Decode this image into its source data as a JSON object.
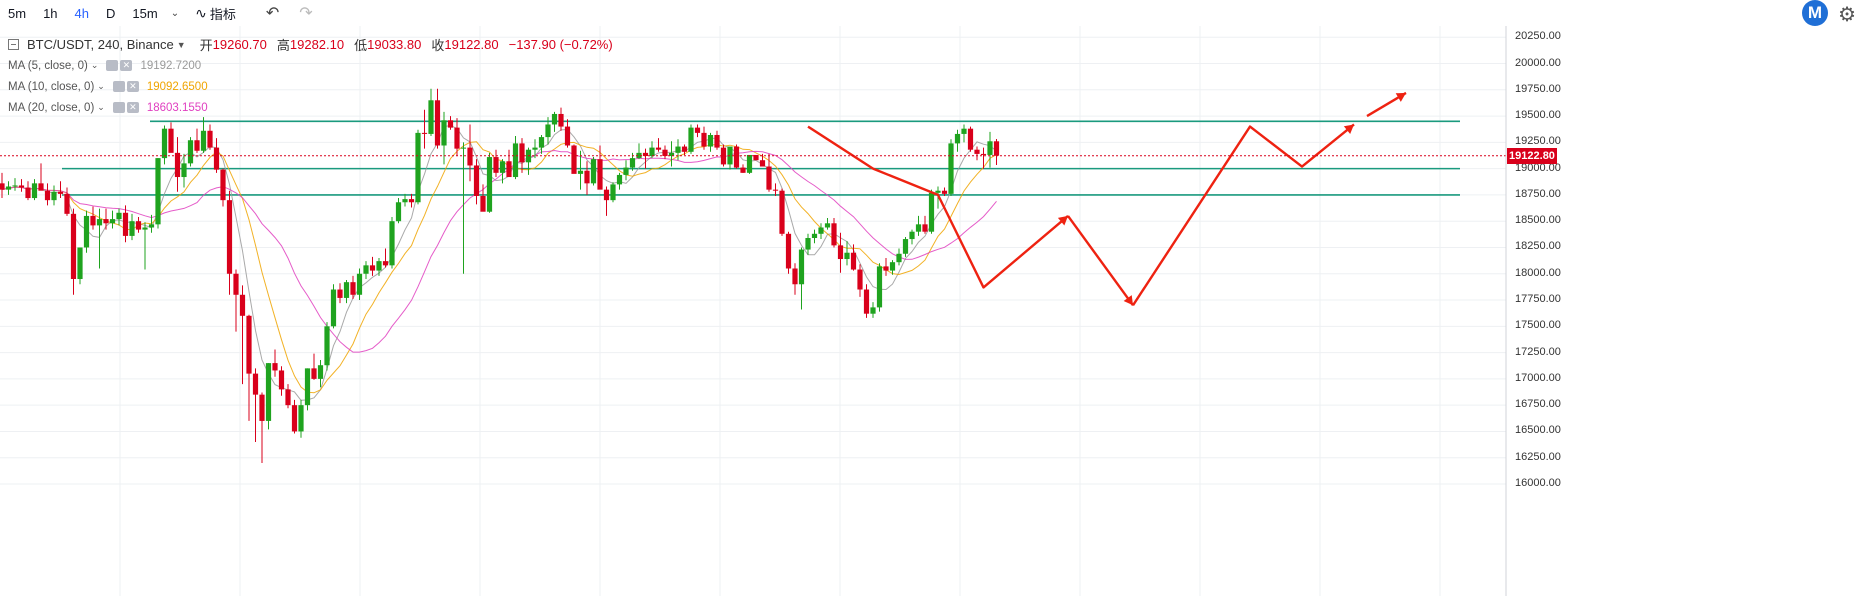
{
  "toolbar": {
    "timeframes": [
      "5m",
      "1h",
      "4h",
      "D",
      "15m"
    ],
    "active_timeframe": "4h",
    "indicators_label": "指标"
  },
  "legend": {
    "symbol": "BTC/USDT, 240, Binance",
    "open_label": "开",
    "open_value": "19260.70",
    "high_label": "高",
    "high_value": "19282.10",
    "low_label": "低",
    "low_value": "19033.80",
    "close_label": "收",
    "close_value": "19122.80",
    "change": "−137.90 (−0.72%)",
    "ma": [
      {
        "label": "MA (5, close, 0)",
        "value": "19192.7200",
        "color": "#9a9a9a"
      },
      {
        "label": "MA (10, close, 0)",
        "value": "19092.6500",
        "color": "#f0a500"
      },
      {
        "label": "MA (20, close, 0)",
        "value": "18603.1550",
        "color": "#e040c0"
      }
    ]
  },
  "current_price_label": "19122.80",
  "colors": {
    "up": "#1fa31f",
    "down": "#d9001b",
    "hline": "#1a9a7e",
    "arrow": "#ee2211"
  },
  "chart_data": {
    "type": "candlestick",
    "title": "",
    "symbol": "BTC/USDT",
    "interval": "240",
    "ylim": [
      15900,
      20400
    ],
    "y_ticks": [
      "20250.00",
      "20000.00",
      "19750.00",
      "19500.00",
      "19250.00",
      "19000.00",
      "18750.00",
      "18500.00",
      "18250.00",
      "18000.00",
      "17750.00",
      "17500.00",
      "17250.00",
      "17000.00",
      "16750.00",
      "16500.00",
      "16250.00",
      "16000.00"
    ],
    "grid": true,
    "last_price": 19122.8,
    "horizontal_levels": [
      19450,
      19000,
      18750
    ],
    "candles_ohlc": [
      [
        18860,
        18960,
        18720,
        18800
      ],
      [
        18800,
        18880,
        18750,
        18830
      ],
      [
        18830,
        18910,
        18790,
        18840
      ],
      [
        18840,
        18900,
        18780,
        18820
      ],
      [
        18820,
        18880,
        18700,
        18720
      ],
      [
        18720,
        18900,
        18700,
        18860
      ],
      [
        18860,
        19050,
        18830,
        18790
      ],
      [
        18790,
        18860,
        18650,
        18700
      ],
      [
        18700,
        18840,
        18650,
        18780
      ],
      [
        18780,
        18880,
        18720,
        18760
      ],
      [
        18760,
        18820,
        18550,
        18570
      ],
      [
        18570,
        18620,
        17800,
        17950
      ],
      [
        17950,
        18250,
        17900,
        18250
      ],
      [
        18250,
        18600,
        18200,
        18550
      ],
      [
        18550,
        18640,
        18420,
        18460
      ],
      [
        18460,
        18620,
        18050,
        18520
      ],
      [
        18520,
        18620,
        18420,
        18480
      ],
      [
        18480,
        18600,
        18430,
        18520
      ],
      [
        18520,
        18620,
        18460,
        18580
      ],
      [
        18580,
        18650,
        18300,
        18360
      ],
      [
        18360,
        18570,
        18320,
        18500
      ],
      [
        18500,
        18540,
        18390,
        18420
      ],
      [
        18420,
        18490,
        18040,
        18440
      ],
      [
        18440,
        18560,
        18390,
        18470
      ],
      [
        18470,
        19100,
        18430,
        19100
      ],
      [
        19100,
        19410,
        19040,
        19380
      ],
      [
        19380,
        19440,
        19160,
        19150
      ],
      [
        19150,
        19300,
        18780,
        18920
      ],
      [
        18920,
        19140,
        18820,
        19050
      ],
      [
        19050,
        19300,
        19020,
        19270
      ],
      [
        19270,
        19380,
        19150,
        19170
      ],
      [
        19170,
        19490,
        19150,
        19360
      ],
      [
        19360,
        19420,
        19180,
        19200
      ],
      [
        19200,
        19290,
        18960,
        18990
      ],
      [
        18990,
        19000,
        18640,
        18700
      ],
      [
        18700,
        18790,
        17800,
        18000
      ],
      [
        18000,
        18040,
        17450,
        17800
      ],
      [
        17800,
        17890,
        16950,
        17600
      ],
      [
        17600,
        17610,
        16600,
        17050
      ],
      [
        17050,
        17100,
        16400,
        16850
      ],
      [
        16850,
        16870,
        16200,
        16600
      ],
      [
        16600,
        17150,
        16520,
        17150
      ],
      [
        17150,
        17280,
        17020,
        17080
      ],
      [
        17080,
        17120,
        16840,
        16900
      ],
      [
        16900,
        16950,
        16720,
        16750
      ],
      [
        16750,
        16800,
        16480,
        16500
      ],
      [
        16500,
        16800,
        16440,
        16750
      ],
      [
        16750,
        17100,
        16700,
        17100
      ],
      [
        17100,
        17240,
        16990,
        17000
      ],
      [
        17000,
        17180,
        16920,
        17130
      ],
      [
        17130,
        17540,
        17080,
        17500
      ],
      [
        17500,
        17900,
        17480,
        17850
      ],
      [
        17850,
        17910,
        17720,
        17770
      ],
      [
        17770,
        17940,
        17720,
        17920
      ],
      [
        17920,
        17980,
        17760,
        17800
      ],
      [
        17800,
        18050,
        17750,
        18000
      ],
      [
        18000,
        18120,
        17950,
        18080
      ],
      [
        18080,
        18160,
        17980,
        18030
      ],
      [
        18030,
        18150,
        17980,
        18120
      ],
      [
        18120,
        18240,
        18060,
        18080
      ],
      [
        18080,
        18540,
        18050,
        18500
      ],
      [
        18500,
        18720,
        18480,
        18680
      ],
      [
        18680,
        18760,
        18640,
        18710
      ],
      [
        18710,
        18760,
        18630,
        18680
      ],
      [
        18680,
        19370,
        18660,
        19340
      ],
      [
        19340,
        19560,
        19190,
        19330
      ],
      [
        19330,
        19760,
        19310,
        19650
      ],
      [
        19650,
        19760,
        19190,
        19220
      ],
      [
        19220,
        19540,
        19040,
        19460
      ],
      [
        19460,
        19500,
        19370,
        19390
      ],
      [
        19390,
        19480,
        19120,
        19190
      ],
      [
        19190,
        19250,
        18000,
        19200
      ],
      [
        19200,
        19420,
        18880,
        19030
      ],
      [
        19030,
        19090,
        18660,
        18740
      ],
      [
        18740,
        18850,
        18600,
        18590
      ],
      [
        18590,
        19150,
        18580,
        19110
      ],
      [
        19110,
        19180,
        18920,
        18960
      ],
      [
        18960,
        19090,
        18860,
        19070
      ],
      [
        19070,
        19180,
        18920,
        18920
      ],
      [
        18920,
        19310,
        18900,
        19240
      ],
      [
        19240,
        19290,
        18960,
        19060
      ],
      [
        19060,
        19200,
        18940,
        19180
      ],
      [
        19180,
        19280,
        19100,
        19200
      ],
      [
        19200,
        19320,
        19140,
        19300
      ],
      [
        19300,
        19490,
        19230,
        19420
      ],
      [
        19420,
        19540,
        19350,
        19520
      ],
      [
        19520,
        19580,
        19360,
        19400
      ],
      [
        19400,
        19470,
        19200,
        19220
      ],
      [
        19220,
        19230,
        19020,
        18950
      ],
      [
        18950,
        19170,
        18800,
        18980
      ],
      [
        18980,
        19070,
        18750,
        18860
      ],
      [
        18860,
        19110,
        18840,
        19090
      ],
      [
        19090,
        19220,
        18890,
        18800
      ],
      [
        18800,
        18830,
        18550,
        18700
      ],
      [
        18700,
        18870,
        18680,
        18850
      ],
      [
        18850,
        18960,
        18800,
        18940
      ],
      [
        18940,
        19080,
        18890,
        19010
      ],
      [
        19010,
        19150,
        18980,
        19100
      ],
      [
        19100,
        19240,
        19090,
        19150
      ],
      [
        19150,
        19190,
        19000,
        19120
      ],
      [
        19120,
        19260,
        19100,
        19200
      ],
      [
        19200,
        19290,
        19160,
        19180
      ],
      [
        19180,
        19220,
        19090,
        19120
      ],
      [
        19120,
        19260,
        19020,
        19150
      ],
      [
        19150,
        19280,
        19080,
        19210
      ],
      [
        19210,
        19230,
        19130,
        19160
      ],
      [
        19160,
        19420,
        19140,
        19390
      ],
      [
        19390,
        19420,
        19300,
        19340
      ],
      [
        19340,
        19400,
        19180,
        19210
      ],
      [
        19210,
        19340,
        19160,
        19320
      ],
      [
        19320,
        19360,
        19180,
        19200
      ],
      [
        19200,
        19230,
        19020,
        19040
      ],
      [
        19040,
        19080,
        18990,
        19210
      ],
      [
        19210,
        19230,
        19000,
        19010
      ],
      [
        19010,
        19040,
        18960,
        18960
      ],
      [
        18960,
        19130,
        18950,
        19130
      ],
      [
        19130,
        19130,
        19080,
        19080
      ],
      [
        19080,
        19140,
        19020,
        19020
      ],
      [
        19020,
        19140,
        18780,
        18800
      ],
      [
        18800,
        18860,
        18740,
        18790
      ],
      [
        18790,
        18810,
        18360,
        18380
      ],
      [
        18380,
        18400,
        18000,
        18050
      ],
      [
        18050,
        18100,
        17800,
        17900
      ],
      [
        17900,
        18250,
        17660,
        18230
      ],
      [
        18230,
        18380,
        18180,
        18340
      ],
      [
        18340,
        18420,
        18290,
        18380
      ],
      [
        18380,
        18480,
        18330,
        18440
      ],
      [
        18440,
        18530,
        18420,
        18480
      ],
      [
        18480,
        18530,
        18250,
        18270
      ],
      [
        18270,
        18390,
        18010,
        18140
      ],
      [
        18140,
        18310,
        18080,
        18200
      ],
      [
        18200,
        18280,
        18030,
        18040
      ],
      [
        18040,
        18090,
        17780,
        17850
      ],
      [
        17850,
        17900,
        17580,
        17620
      ],
      [
        17620,
        17730,
        17580,
        17680
      ],
      [
        17680,
        18100,
        17640,
        18070
      ],
      [
        18070,
        18150,
        17980,
        18030
      ],
      [
        18030,
        18130,
        17990,
        18110
      ],
      [
        18110,
        18240,
        18080,
        18190
      ],
      [
        18190,
        18350,
        18160,
        18330
      ],
      [
        18330,
        18420,
        18280,
        18400
      ],
      [
        18400,
        18550,
        18360,
        18470
      ],
      [
        18470,
        18550,
        18380,
        18400
      ],
      [
        18400,
        18800,
        18380,
        18770
      ],
      [
        18770,
        18830,
        18620,
        18790
      ],
      [
        18790,
        18820,
        18740,
        18760
      ],
      [
        18760,
        19280,
        18740,
        19240
      ],
      [
        19240,
        19370,
        19160,
        19330
      ],
      [
        19330,
        19420,
        19250,
        19380
      ],
      [
        19380,
        19400,
        19160,
        19180
      ],
      [
        19180,
        19210,
        19080,
        19140
      ],
      [
        19140,
        19200,
        19000,
        19130
      ],
      [
        19130,
        19350,
        19010,
        19260
      ],
      [
        19260,
        19282,
        19034,
        19123
      ]
    ],
    "ma_series": [
      {
        "name": "MA (5, close, 0)",
        "period": 5,
        "color": "#9a9a9a",
        "last": 19192.72
      },
      {
        "name": "MA (10, close, 0)",
        "period": 10,
        "color": "#f0a500",
        "last": 19092.65
      },
      {
        "name": "MA (20, close, 0)",
        "period": 20,
        "color": "#e040c0",
        "last": 18603.155
      }
    ],
    "annotation_paths": [
      [
        [
          124,
          19400
        ],
        [
          134,
          19000
        ],
        [
          144,
          18750
        ],
        [
          151,
          17870
        ],
        [
          164,
          18550
        ]
      ],
      [
        [
          164,
          18550
        ],
        [
          174,
          17700
        ]
      ],
      [
        [
          174,
          17700
        ],
        [
          192,
          19400
        ],
        [
          200,
          19020
        ],
        [
          208,
          19420
        ]
      ],
      [
        [
          210,
          19500
        ],
        [
          216,
          19720
        ]
      ]
    ]
  }
}
